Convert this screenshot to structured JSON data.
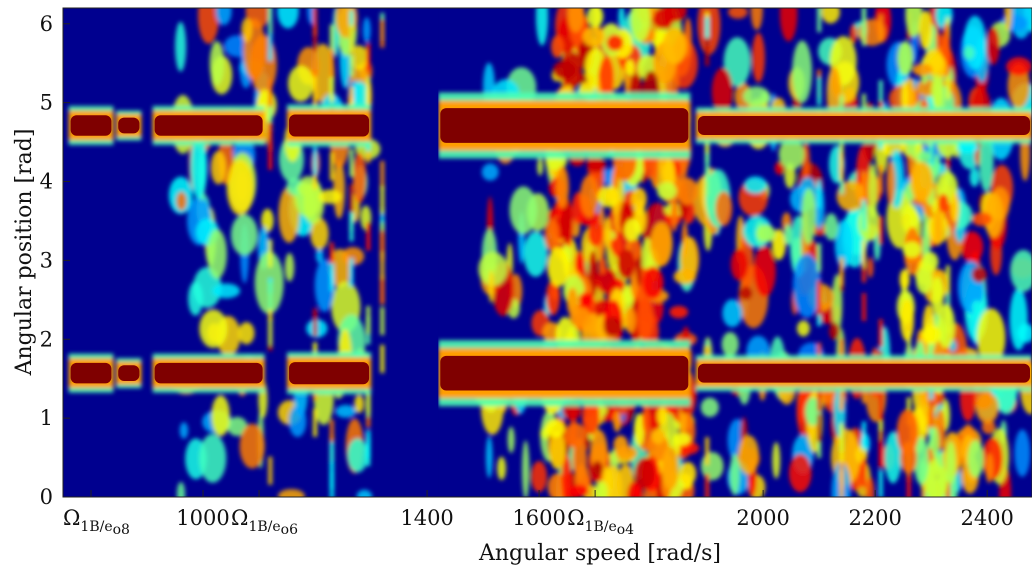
{
  "chart_data": {
    "type": "heatmap",
    "title": "",
    "xlabel": "Angular speed [rad/s]",
    "ylabel": "Angular position [rad]",
    "xlim": [
      750,
      2480
    ],
    "ylim": [
      0,
      6.2
    ],
    "colormap": "jet",
    "colors": {
      "low": "#00008f",
      "mid": "#00ffff",
      "high": "#7f0000"
    },
    "x_ticks": [
      1000,
      1400,
      1600,
      2000,
      2200,
      2400
    ],
    "y_ticks": [
      0,
      1,
      2,
      3,
      4,
      5,
      6
    ],
    "x_tick_labels": [
      "1000",
      "1400",
      "1600",
      "2000",
      "2200",
      "2400"
    ],
    "y_tick_labels": [
      "0",
      "1",
      "2",
      "3",
      "4",
      "5",
      "6"
    ],
    "annotations": [
      {
        "x": 800,
        "symbol": "Ω",
        "subscript": "1B/e",
        "subsub": "o8"
      },
      {
        "x": 1100,
        "symbol": "Ω",
        "subscript": "1B/e",
        "subsub": "o6"
      },
      {
        "x": 1700,
        "symbol": "Ω",
        "subscript": "1B/e",
        "subsub": "o4"
      }
    ],
    "bands": [
      {
        "name": "main-lower",
        "y": 1.57,
        "segments": [
          [
            760,
            840,
            0.13
          ],
          [
            845,
            890,
            0.1
          ],
          [
            910,
            1110,
            0.13
          ],
          [
            1150,
            1300,
            0.14
          ],
          [
            1420,
            1870,
            0.22
          ],
          [
            1880,
            2480,
            0.12
          ]
        ]
      },
      {
        "name": "main-upper",
        "y": 4.71,
        "segments": [
          [
            760,
            840,
            0.13
          ],
          [
            845,
            890,
            0.1
          ],
          [
            910,
            1110,
            0.13
          ],
          [
            1150,
            1300,
            0.14
          ],
          [
            1420,
            1870,
            0.22
          ],
          [
            1880,
            2480,
            0.12
          ]
        ]
      }
    ],
    "gaps": [
      [
        1330,
        1420
      ]
    ],
    "hot_regions": [
      {
        "x": [
          1620,
          1870
        ],
        "y": [
          0,
          6.2
        ],
        "intensity": 0.85
      },
      {
        "x": [
          2250,
          2330
        ],
        "y": [
          0,
          6.2
        ],
        "intensity": 0.7
      },
      {
        "x": [
          2300,
          2430
        ],
        "y": [
          0.2,
          0.7
        ],
        "intensity": 0.75
      },
      {
        "x": [
          2300,
          2430
        ],
        "y": [
          3.4,
          3.8
        ],
        "intensity": 0.75
      },
      {
        "x": [
          1960,
          2060
        ],
        "y": [
          3.2,
          3.45
        ],
        "intensity": 0.6
      }
    ]
  }
}
